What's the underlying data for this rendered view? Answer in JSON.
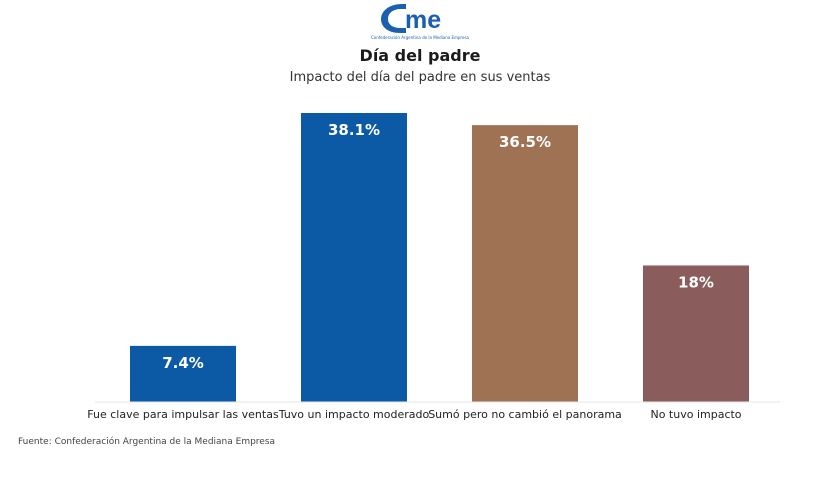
{
  "logo": {
    "name": "came",
    "tagline": "Confederación Argentina de la Mediana Empresa",
    "color": "#1a5fb0"
  },
  "header": {
    "title": "Día del padre",
    "subtitle": "Impacto del día del padre en sus ventas"
  },
  "source": "Fuente: Confederación Argentina de la Mediana Empresa",
  "chart_data": {
    "type": "bar",
    "title": "Día del padre",
    "subtitle": "Impacto del día del padre en sus ventas",
    "categories": [
      "Fue clave para impulsar las ventas",
      "Tuvo un impacto moderado",
      "Sumó pero no cambió el panorama",
      "No tuvo impacto"
    ],
    "values": [
      7.4,
      38.1,
      36.5,
      18
    ],
    "value_labels": [
      "7.4%",
      "38.1%",
      "36.5%",
      "18%"
    ],
    "colors": [
      "#0c5aa6",
      "#0c5aa6",
      "#9e7252",
      "#8b5c5c"
    ],
    "ylim": [
      0,
      38.1
    ],
    "grid": false,
    "legend": "none"
  }
}
